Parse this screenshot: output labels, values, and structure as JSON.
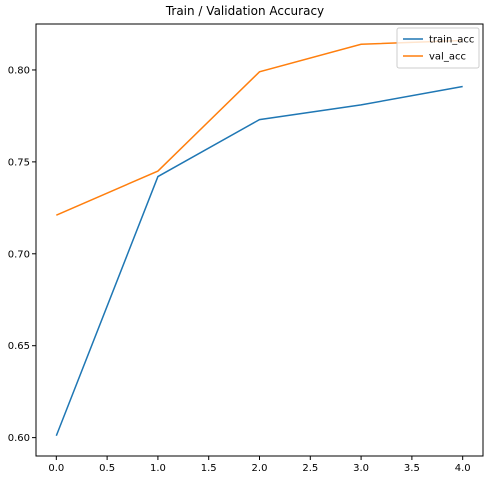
{
  "chart_data": {
    "type": "line",
    "title": "Train / Validation Accuracy",
    "xlabel": "",
    "ylabel": "",
    "x": [
      0,
      1,
      2,
      3,
      4
    ],
    "series": [
      {
        "name": "train_acc",
        "color": "#1f77b4",
        "values": [
          0.601,
          0.742,
          0.773,
          0.781,
          0.791
        ]
      },
      {
        "name": "val_acc",
        "color": "#ff7f0e",
        "values": [
          0.721,
          0.745,
          0.799,
          0.814,
          0.816
        ]
      }
    ],
    "xlim": [
      -0.2,
      4.2
    ],
    "ylim": [
      0.59,
      0.825
    ],
    "xticks": [
      "0.0",
      "0.5",
      "1.0",
      "1.5",
      "2.0",
      "2.5",
      "3.0",
      "3.5",
      "4.0"
    ],
    "yticks": [
      "0.60",
      "0.65",
      "0.70",
      "0.75",
      "0.80"
    ],
    "grid": false,
    "legend_position": "top-right"
  }
}
